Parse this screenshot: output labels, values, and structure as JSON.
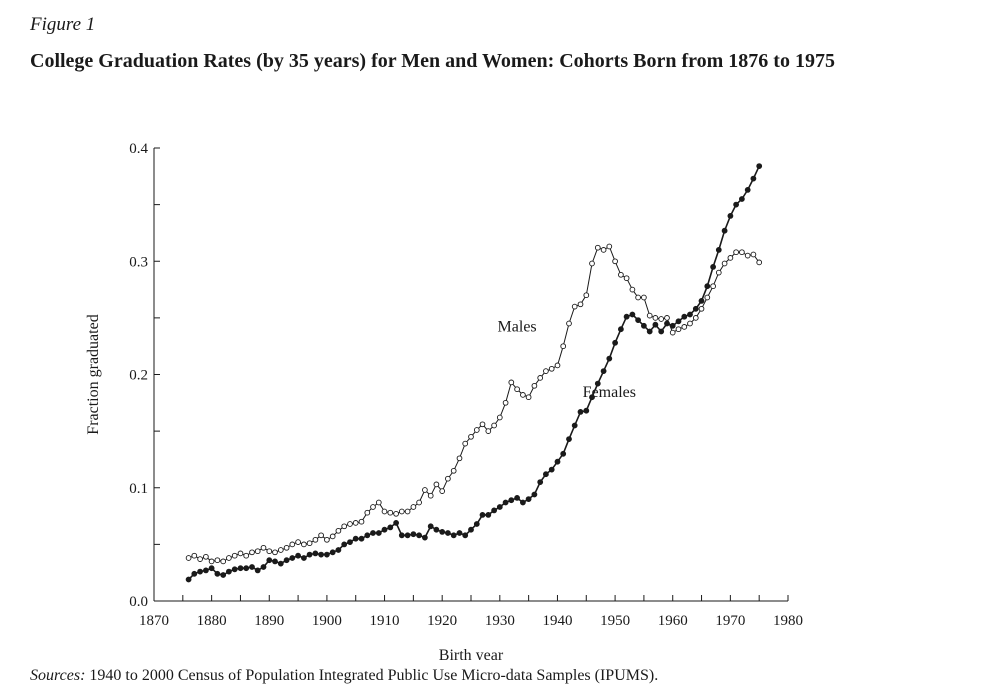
{
  "figure": {
    "label": "Figure 1",
    "title": "College Graduation Rates (by 35 years) for Men and Women: Cohorts Born from 1876 to 1975"
  },
  "sources": {
    "lead": "Sources:",
    "text": "1940 to 2000 Census of Population Integrated Public Use Micro-data Samples (IPUMS)."
  },
  "colors": {
    "ink": "#1a1a1a",
    "background": "#ffffff"
  },
  "chart_data": {
    "type": "line",
    "title": "College Graduation Rates (by 35 years) for Men and Women: Cohorts Born from 1876 to 1975",
    "xlabel": "Birth year",
    "ylabel": "Fraction graduated",
    "xlim": [
      1870,
      1980
    ],
    "ylim": [
      0,
      0.4
    ],
    "xticks": [
      1870,
      1880,
      1890,
      1900,
      1910,
      1920,
      1930,
      1940,
      1950,
      1960,
      1970,
      1980
    ],
    "yticks": [
      0.0,
      0.1,
      0.2,
      0.3,
      0.4
    ],
    "ytick_labels": [
      "0.0",
      "0.1",
      "0.2",
      "0.3",
      "0.4"
    ],
    "grid": false,
    "legend": "none",
    "annotations": [
      {
        "text": "Males",
        "x": 1933,
        "y": 0.238
      },
      {
        "text": "Females",
        "x": 1949,
        "y": 0.18
      }
    ],
    "x": [
      1876,
      1877,
      1878,
      1879,
      1880,
      1881,
      1882,
      1883,
      1884,
      1885,
      1886,
      1887,
      1888,
      1889,
      1890,
      1891,
      1892,
      1893,
      1894,
      1895,
      1896,
      1897,
      1898,
      1899,
      1900,
      1901,
      1902,
      1903,
      1904,
      1905,
      1906,
      1907,
      1908,
      1909,
      1910,
      1911,
      1912,
      1913,
      1914,
      1915,
      1916,
      1917,
      1918,
      1919,
      1920,
      1921,
      1922,
      1923,
      1924,
      1925,
      1926,
      1927,
      1928,
      1929,
      1930,
      1931,
      1932,
      1933,
      1934,
      1935,
      1936,
      1937,
      1938,
      1939,
      1940,
      1941,
      1942,
      1943,
      1944,
      1945,
      1946,
      1947,
      1948,
      1949,
      1950,
      1951,
      1952,
      1953,
      1954,
      1955,
      1956,
      1957,
      1958,
      1959,
      1960,
      1961,
      1962,
      1963,
      1964,
      1965,
      1966,
      1967,
      1968,
      1969,
      1970,
      1971,
      1972,
      1973,
      1974,
      1975
    ],
    "series": [
      {
        "name": "Males",
        "marker": "open-circle",
        "values": [
          0.038,
          0.04,
          0.037,
          0.039,
          0.035,
          0.036,
          0.035,
          0.038,
          0.04,
          0.042,
          0.04,
          0.043,
          0.044,
          0.047,
          0.044,
          0.043,
          0.045,
          0.047,
          0.05,
          0.052,
          0.05,
          0.051,
          0.054,
          0.058,
          0.054,
          0.057,
          0.062,
          0.066,
          0.068,
          0.069,
          0.07,
          0.078,
          0.083,
          0.087,
          0.079,
          0.078,
          0.077,
          0.079,
          0.079,
          0.083,
          0.087,
          0.098,
          0.093,
          0.103,
          0.097,
          0.108,
          0.115,
          0.126,
          0.139,
          0.145,
          0.151,
          0.156,
          0.15,
          0.155,
          0.162,
          0.175,
          0.193,
          0.187,
          0.182,
          0.18,
          0.19,
          0.197,
          0.203,
          0.205,
          0.208,
          0.225,
          0.245,
          0.26,
          0.262,
          0.27,
          0.298,
          0.312,
          0.31,
          0.313,
          0.3,
          0.288,
          0.285,
          0.275,
          0.268,
          0.268,
          0.252,
          0.25,
          0.249,
          0.25,
          0.237,
          0.24,
          0.242,
          0.245,
          0.25,
          0.258,
          0.268,
          0.278,
          0.29,
          0.298,
          0.303,
          0.308,
          0.308,
          0.305,
          0.306,
          0.299
        ]
      },
      {
        "name": "Females",
        "marker": "filled-circle",
        "values": [
          0.019,
          0.024,
          0.026,
          0.027,
          0.029,
          0.024,
          0.023,
          0.026,
          0.028,
          0.029,
          0.029,
          0.03,
          0.027,
          0.03,
          0.036,
          0.035,
          0.033,
          0.036,
          0.038,
          0.04,
          0.038,
          0.041,
          0.042,
          0.041,
          0.041,
          0.043,
          0.045,
          0.05,
          0.052,
          0.055,
          0.055,
          0.058,
          0.06,
          0.06,
          0.063,
          0.065,
          0.069,
          0.058,
          0.058,
          0.059,
          0.058,
          0.056,
          0.066,
          0.063,
          0.061,
          0.06,
          0.058,
          0.06,
          0.058,
          0.063,
          0.068,
          0.076,
          0.076,
          0.08,
          0.083,
          0.087,
          0.089,
          0.091,
          0.087,
          0.09,
          0.094,
          0.105,
          0.112,
          0.116,
          0.123,
          0.13,
          0.143,
          0.155,
          0.167,
          0.168,
          0.18,
          0.192,
          0.203,
          0.214,
          0.228,
          0.24,
          0.251,
          0.253,
          0.248,
          0.243,
          0.238,
          0.244,
          0.238,
          0.245,
          0.243,
          0.247,
          0.251,
          0.253,
          0.258,
          0.265,
          0.278,
          0.295,
          0.31,
          0.327,
          0.34,
          0.35,
          0.355,
          0.363,
          0.373,
          0.384
        ]
      }
    ]
  }
}
